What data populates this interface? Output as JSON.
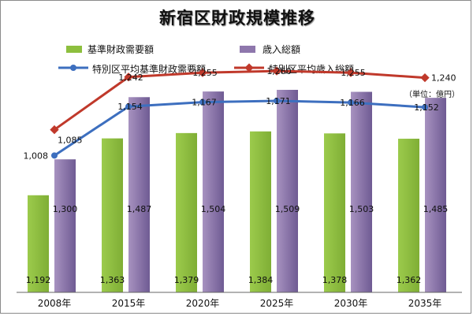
{
  "title": "新宿区財政規模推移",
  "unit_label": "（単位：億円）",
  "legend": [
    {
      "label": "基準財政需要額",
      "kind": "bar",
      "color": "#8DBF3E"
    },
    {
      "label": "歳入総額",
      "kind": "bar",
      "color": "#8E77AC"
    },
    {
      "label": "特別区平均基準財政需要額",
      "kind": "line",
      "color": "#3D6FBF"
    },
    {
      "label": "特別区平均歳入総額",
      "kind": "line",
      "color": "#C0392B"
    }
  ],
  "chart_data": {
    "type": "bar",
    "categories": [
      "2008年",
      "2015年",
      "2020年",
      "2025年",
      "2030年",
      "2035年"
    ],
    "series": [
      {
        "name": "基準財政需要額",
        "type": "bar",
        "color": "#8DBF3E",
        "values": [
          1192,
          1363,
          1379,
          1384,
          1378,
          1362
        ],
        "labels": [
          "1,192",
          "1,363",
          "1,379",
          "1,384",
          "1,378",
          "1,362"
        ]
      },
      {
        "name": "歳入総額",
        "type": "bar",
        "color": "#8E77AC",
        "values": [
          1300,
          1487,
          1504,
          1509,
          1503,
          1485
        ],
        "labels": [
          "1,300",
          "1,487",
          "1,504",
          "1,509",
          "1,503",
          "1,485"
        ]
      },
      {
        "name": "特別区平均基準財政需要額",
        "type": "line",
        "color": "#3D6FBF",
        "values": [
          1008,
          1154,
          1167,
          1171,
          1166,
          1152
        ],
        "labels": [
          "1,008",
          "1,154",
          "1,167",
          "1,171",
          "1,166",
          "1,152"
        ]
      },
      {
        "name": "特別区平均歳入総額",
        "type": "line",
        "color": "#C0392B",
        "values": [
          1085,
          1242,
          1255,
          1260,
          1255,
          1240
        ],
        "labels": [
          "1,085",
          "1,242",
          "1,255",
          "1,260",
          "1,255",
          "1,240"
        ]
      }
    ],
    "grid": false,
    "legend_position": "top"
  }
}
